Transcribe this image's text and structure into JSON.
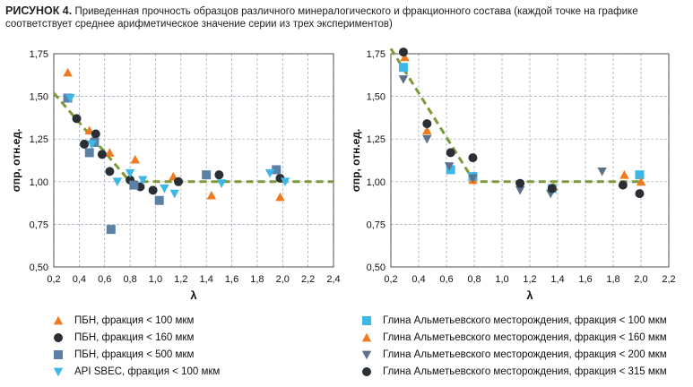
{
  "caption": {
    "fig": "РИСУНОК 4.",
    "text": "Приведенная прочность образцов различного минералогического и фракционного состава (каждой точке на графике соответствует среднее арифметическое значение серии из трех экспериментов)"
  },
  "colors": {
    "orange": "#f07a1f",
    "dark": "#2a2f36",
    "steel": "#5b80a5",
    "cyan": "#3cb8e8",
    "slate": "#5a7189",
    "trend": "#7d9a3a",
    "grid": "#9aa3b5"
  },
  "chart_data": [
    {
      "type": "scatter",
      "xlabel": "λ",
      "ylabel": "σпр, отн.ед.",
      "xlim": [
        0.2,
        2.4
      ],
      "ylim": [
        0.5,
        1.75
      ],
      "xticks": [
        "0,2",
        "0,4",
        "0,6",
        "0,8",
        "1,0",
        "1,2",
        "1,4",
        "1,6",
        "1,8",
        "2,0",
        "2,2",
        "2,4"
      ],
      "yticks": [
        "0,50",
        "0,75",
        "1,00",
        "1,25",
        "1,50",
        "1,75"
      ],
      "grid": true,
      "trend": [
        [
          0.2,
          1.52
        ],
        [
          0.8,
          1.0
        ],
        [
          2.4,
          1.0
        ]
      ],
      "series": [
        {
          "name": "ПБН, фракция < 100 мкм",
          "marker": "triangle-up",
          "color": "orange",
          "points": [
            [
              0.31,
              1.64
            ],
            [
              0.48,
              1.3
            ],
            [
              0.64,
              1.17
            ],
            [
              0.84,
              1.13
            ],
            [
              1.14,
              1.03
            ],
            [
              1.44,
              0.92
            ],
            [
              1.98,
              0.91
            ]
          ]
        },
        {
          "name": "ПБН, фракция < 160 мкм",
          "marker": "circle",
          "color": "dark",
          "points": [
            [
              0.38,
              1.37
            ],
            [
              0.44,
              1.22
            ],
            [
              0.53,
              1.28
            ],
            [
              0.58,
              1.16
            ],
            [
              0.64,
              1.06
            ],
            [
              0.8,
              1.01
            ],
            [
              0.88,
              0.97
            ],
            [
              0.98,
              0.95
            ],
            [
              1.18,
              1.0
            ],
            [
              1.5,
              1.04
            ],
            [
              1.98,
              1.02
            ]
          ]
        },
        {
          "name": "ПБН, фракция < 500 мкм",
          "marker": "square",
          "color": "steel",
          "points": [
            [
              0.31,
              1.49
            ],
            [
              0.48,
              1.17
            ],
            [
              0.52,
              1.23
            ],
            [
              0.65,
              0.72
            ],
            [
              0.83,
              0.98
            ],
            [
              1.03,
              0.89
            ],
            [
              1.4,
              1.04
            ],
            [
              1.95,
              1.07
            ]
          ]
        },
        {
          "name": "API SBEC, фракция < 100 мкм",
          "marker": "triangle-down",
          "color": "cyan",
          "points": [
            [
              0.33,
              1.49
            ],
            [
              0.5,
              1.22
            ],
            [
              0.7,
              1.0
            ],
            [
              0.8,
              1.05
            ],
            [
              0.9,
              1.01
            ],
            [
              1.07,
              0.96
            ],
            [
              1.15,
              0.93
            ],
            [
              1.52,
              0.99
            ],
            [
              1.9,
              1.05
            ],
            [
              2.02,
              1.0
            ]
          ]
        }
      ]
    },
    {
      "type": "scatter",
      "xlabel": "λ",
      "ylabel": "σпр, отн.ед.",
      "xlim": [
        0.2,
        2.2
      ],
      "ylim": [
        0.5,
        1.75
      ],
      "xticks": [
        "0,2",
        "0,4",
        "0,6",
        "0,8",
        "1,0",
        "1,2",
        "1,4",
        "1,6",
        "1,8",
        "2,0",
        "2,2"
      ],
      "yticks": [
        "0,50",
        "0,75",
        "1,00",
        "1,25",
        "1,50",
        "1,75"
      ],
      "grid": true,
      "trend": [
        [
          0.2,
          1.78
        ],
        [
          0.8,
          1.0
        ],
        [
          2.0,
          1.0
        ]
      ],
      "series": [
        {
          "name": "Глина Альметьевского месторождения, фракция < 100 мкм",
          "marker": "square",
          "color": "cyan",
          "points": [
            [
              0.29,
              1.67
            ],
            [
              0.63,
              1.07
            ],
            [
              0.79,
              1.03
            ],
            [
              1.36,
              0.96
            ],
            [
              1.99,
              1.04
            ]
          ]
        },
        {
          "name": "Глина Альметьевского месторождения, фракция < 160 мкм",
          "marker": "triangle-up",
          "color": "orange",
          "points": [
            [
              0.3,
              1.73
            ],
            [
              0.46,
              1.3
            ],
            [
              0.79,
              1.01
            ],
            [
              1.37,
              0.97
            ],
            [
              1.88,
              1.04
            ],
            [
              2.0,
              1.0
            ]
          ]
        },
        {
          "name": "Глина Альметьевского месторождения, фракция < 200 мкм",
          "marker": "triangle-down",
          "color": "slate",
          "points": [
            [
              0.29,
              1.6
            ],
            [
              0.46,
              1.25
            ],
            [
              0.62,
              1.09
            ],
            [
              0.79,
              1.02
            ],
            [
              1.13,
              0.95
            ],
            [
              1.35,
              0.93
            ],
            [
              1.72,
              1.06
            ]
          ]
        },
        {
          "name": "Глина Альметьевского месторождения, фракция < 315 мкм",
          "marker": "circle",
          "color": "dark",
          "points": [
            [
              0.29,
              1.76
            ],
            [
              0.46,
              1.34
            ],
            [
              0.63,
              1.17
            ],
            [
              0.79,
              1.14
            ],
            [
              1.13,
              0.99
            ],
            [
              1.36,
              0.96
            ],
            [
              1.87,
              0.98
            ],
            [
              1.99,
              0.93
            ]
          ]
        }
      ]
    }
  ]
}
